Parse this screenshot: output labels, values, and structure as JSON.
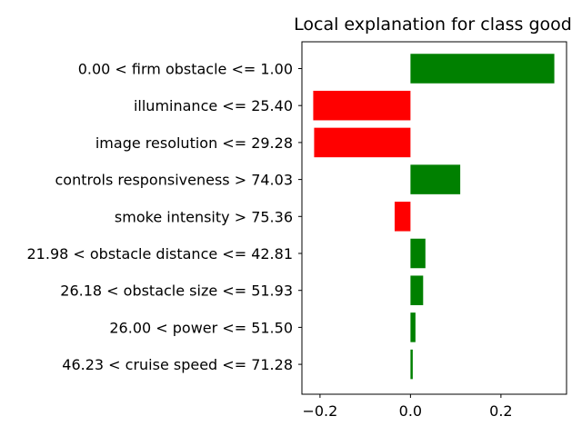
{
  "chart_data": {
    "type": "bar",
    "orientation": "horizontal",
    "title": "Local explanation for class good",
    "xlabel": "",
    "ylabel": "",
    "xlim": [
      -0.24,
      0.345
    ],
    "xticks": [
      -0.2,
      0.0,
      0.2
    ],
    "xtick_labels": [
      "−0.2",
      "0.0",
      "0.2"
    ],
    "grid": false,
    "colors": {
      "positive": "#008000",
      "negative": "#ff0000"
    },
    "categories": [
      "0.00 < firm obstacle <= 1.00",
      "illuminance <= 25.40",
      "image resolution <= 29.28",
      "controls responsiveness > 74.03",
      "smoke intensity > 75.36",
      "21.98 < obstacle distance <= 42.81",
      "26.18 < obstacle size <= 51.93",
      "26.00 < power <= 51.50",
      "46.23 < cruise speed <= 71.28"
    ],
    "values": [
      0.318,
      -0.215,
      -0.213,
      0.11,
      -0.035,
      0.033,
      0.028,
      0.011,
      0.005
    ]
  }
}
